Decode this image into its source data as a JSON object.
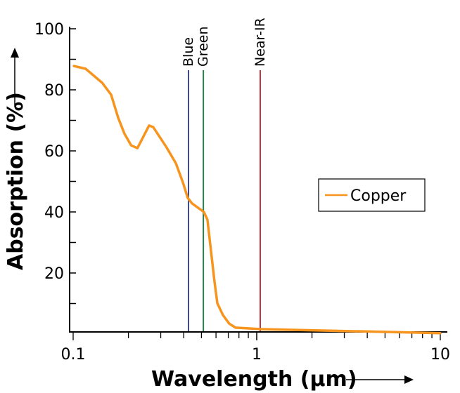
{
  "chart_data": {
    "type": "line",
    "title": "",
    "xlabel": "Wavelength (µm)",
    "ylabel": "Absorption (%)",
    "xscale": "log",
    "xlim": [
      0.1,
      10
    ],
    "ylim": [
      0,
      100
    ],
    "xticks": [
      {
        "value": 0.1,
        "label": "0.1"
      },
      {
        "value": 1,
        "label": "1"
      },
      {
        "value": 10,
        "label": "10"
      }
    ],
    "yticks": [
      {
        "value": 20,
        "label": "20"
      },
      {
        "value": 40,
        "label": "40"
      },
      {
        "value": 60,
        "label": "60"
      },
      {
        "value": 80,
        "label": "80"
      },
      {
        "value": 100,
        "label": "100"
      }
    ],
    "grid": false,
    "legend_position": "right",
    "series": [
      {
        "name": "Copper",
        "color": "#f7941d",
        "x": [
          0.101,
          0.117,
          0.144,
          0.161,
          0.176,
          0.19,
          0.207,
          0.224,
          0.259,
          0.273,
          0.323,
          0.363,
          0.396,
          0.421,
          0.444,
          0.515,
          0.539,
          0.588,
          0.61,
          0.655,
          0.708,
          0.767,
          1.06,
          10
        ],
        "y": [
          87.8,
          86.9,
          82.3,
          78.4,
          70.8,
          65.7,
          61.8,
          60.9,
          68.3,
          67.8,
          61.1,
          55.9,
          49.7,
          44.6,
          42.8,
          40.0,
          37.5,
          17.5,
          10.1,
          6.2,
          3.4,
          2.1,
          1.6,
          0.3
        ]
      }
    ],
    "reference_lines": [
      {
        "label": "Blue",
        "x": 0.425,
        "color": "#3b4a9c"
      },
      {
        "label": "Green",
        "x": 0.512,
        "color": "#2e7d4f"
      },
      {
        "label": "Near-IR",
        "x": 1.045,
        "color": "#c0363c"
      }
    ]
  }
}
